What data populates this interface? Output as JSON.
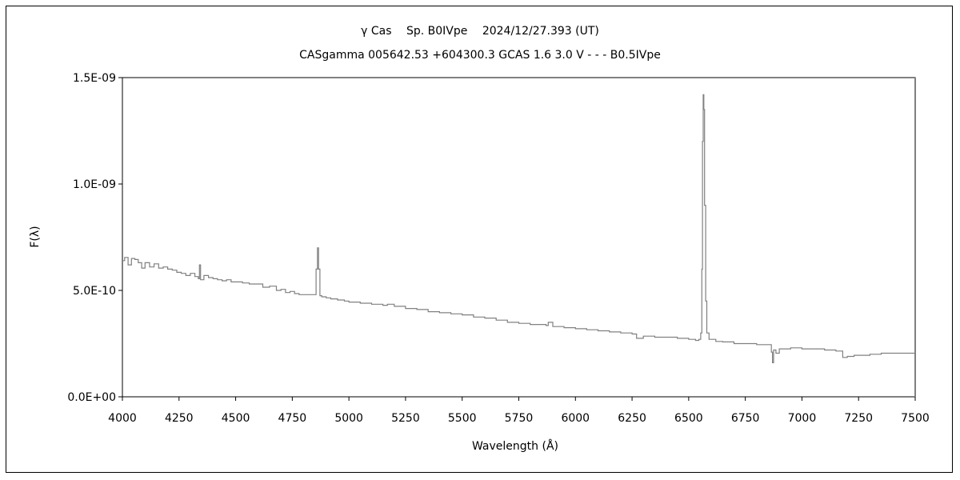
{
  "chart_data": {
    "type": "line",
    "title": "γ Cas　 Sp. B0IVpe　 2024/12/27.393 (UT)",
    "subtitle": "CASgamma 005642.53 +604300.3 GCAS 1.6 3.0 V - - - B0.5IVpe",
    "xlabel": "Wavelength (Å)",
    "ylabel": "F(λ)",
    "xlim": [
      4000,
      7500
    ],
    "ylim": [
      0,
      1.5e-09
    ],
    "xticks": [
      4000,
      4250,
      4500,
      4750,
      5000,
      5250,
      5500,
      5750,
      6000,
      6250,
      6500,
      6750,
      7000,
      7250,
      7500
    ],
    "xtick_labels": [
      "4000",
      "4250",
      "4500",
      "4750",
      "5000",
      "5250",
      "5500",
      "5750",
      "6000",
      "6250",
      "6500",
      "6750",
      "7000",
      "7250",
      "7500"
    ],
    "yticks": [
      0,
      5e-10,
      1e-09,
      1.5e-09
    ],
    "ytick_labels": [
      "0.0E+00",
      "5.0E-10",
      "1.0E-09",
      "1.5E-09"
    ],
    "grid": false,
    "line_color": "#808080",
    "series": [
      {
        "name": "spectrum",
        "x": [
          4000,
          4010,
          4025,
          4040,
          4055,
          4070,
          4085,
          4100,
          4120,
          4140,
          4160,
          4180,
          4200,
          4220,
          4240,
          4260,
          4280,
          4300,
          4320,
          4335,
          4340,
          4345,
          4360,
          4380,
          4400,
          4420,
          4440,
          4460,
          4480,
          4500,
          4530,
          4560,
          4590,
          4620,
          4650,
          4680,
          4700,
          4720,
          4740,
          4760,
          4780,
          4800,
          4830,
          4850,
          4855,
          4861,
          4866,
          4872,
          4880,
          4900,
          4920,
          4950,
          4980,
          5000,
          5050,
          5100,
          5150,
          5170,
          5200,
          5250,
          5300,
          5350,
          5400,
          5450,
          5500,
          5550,
          5600,
          5650,
          5700,
          5750,
          5800,
          5870,
          5880,
          5900,
          5950,
          6000,
          6050,
          6100,
          6150,
          6200,
          6250,
          6270,
          6300,
          6350,
          6400,
          6450,
          6500,
          6530,
          6545,
          6553,
          6558,
          6561,
          6564,
          6567,
          6570,
          6575,
          6580,
          6590,
          6620,
          6650,
          6700,
          6750,
          6800,
          6850,
          6865,
          6870,
          6875,
          6885,
          6900,
          6950,
          7000,
          7050,
          7100,
          7150,
          7180,
          7200,
          7230,
          7260,
          7300,
          7350,
          7400,
          7450,
          7500
        ],
        "y": [
          6.4e-10,
          6.55e-10,
          6.2e-10,
          6.5e-10,
          6.45e-10,
          6.3e-10,
          6.05e-10,
          6.3e-10,
          6.1e-10,
          6.25e-10,
          6.05e-10,
          6.1e-10,
          6e-10,
          5.95e-10,
          5.85e-10,
          5.8e-10,
          5.7e-10,
          5.8e-10,
          5.65e-10,
          5.55e-10,
          6.2e-10,
          5.5e-10,
          5.7e-10,
          5.6e-10,
          5.55e-10,
          5.5e-10,
          5.45e-10,
          5.5e-10,
          5.4e-10,
          5.4e-10,
          5.35e-10,
          5.3e-10,
          5.3e-10,
          5.15e-10,
          5.2e-10,
          5e-10,
          5.05e-10,
          4.9e-10,
          4.95e-10,
          4.85e-10,
          4.8e-10,
          4.8e-10,
          4.8e-10,
          4.8e-10,
          6e-10,
          7e-10,
          6e-10,
          4.75e-10,
          4.7e-10,
          4.65e-10,
          4.6e-10,
          4.55e-10,
          4.5e-10,
          4.45e-10,
          4.4e-10,
          4.35e-10,
          4.3e-10,
          4.35e-10,
          4.25e-10,
          4.15e-10,
          4.1e-10,
          4e-10,
          3.95e-10,
          3.9e-10,
          3.85e-10,
          3.75e-10,
          3.7e-10,
          3.6e-10,
          3.5e-10,
          3.45e-10,
          3.4e-10,
          3.35e-10,
          3.5e-10,
          3.3e-10,
          3.25e-10,
          3.2e-10,
          3.15e-10,
          3.1e-10,
          3.05e-10,
          3e-10,
          2.95e-10,
          2.75e-10,
          2.85e-10,
          2.8e-10,
          2.8e-10,
          2.75e-10,
          2.7e-10,
          2.65e-10,
          2.7e-10,
          3e-10,
          6e-10,
          1.2e-09,
          1.42e-09,
          1.35e-09,
          9e-10,
          4.5e-10,
          3e-10,
          2.7e-10,
          2.6e-10,
          2.58e-10,
          2.5e-10,
          2.5e-10,
          2.45e-10,
          2.45e-10,
          2.1e-10,
          1.6e-10,
          2.2e-10,
          2.05e-10,
          2.25e-10,
          2.3e-10,
          2.25e-10,
          2.25e-10,
          2.2e-10,
          2.15e-10,
          1.85e-10,
          1.9e-10,
          1.95e-10,
          1.95e-10,
          2e-10,
          2.05e-10,
          2.05e-10,
          2.05e-10,
          2.05e-10
        ]
      }
    ]
  }
}
